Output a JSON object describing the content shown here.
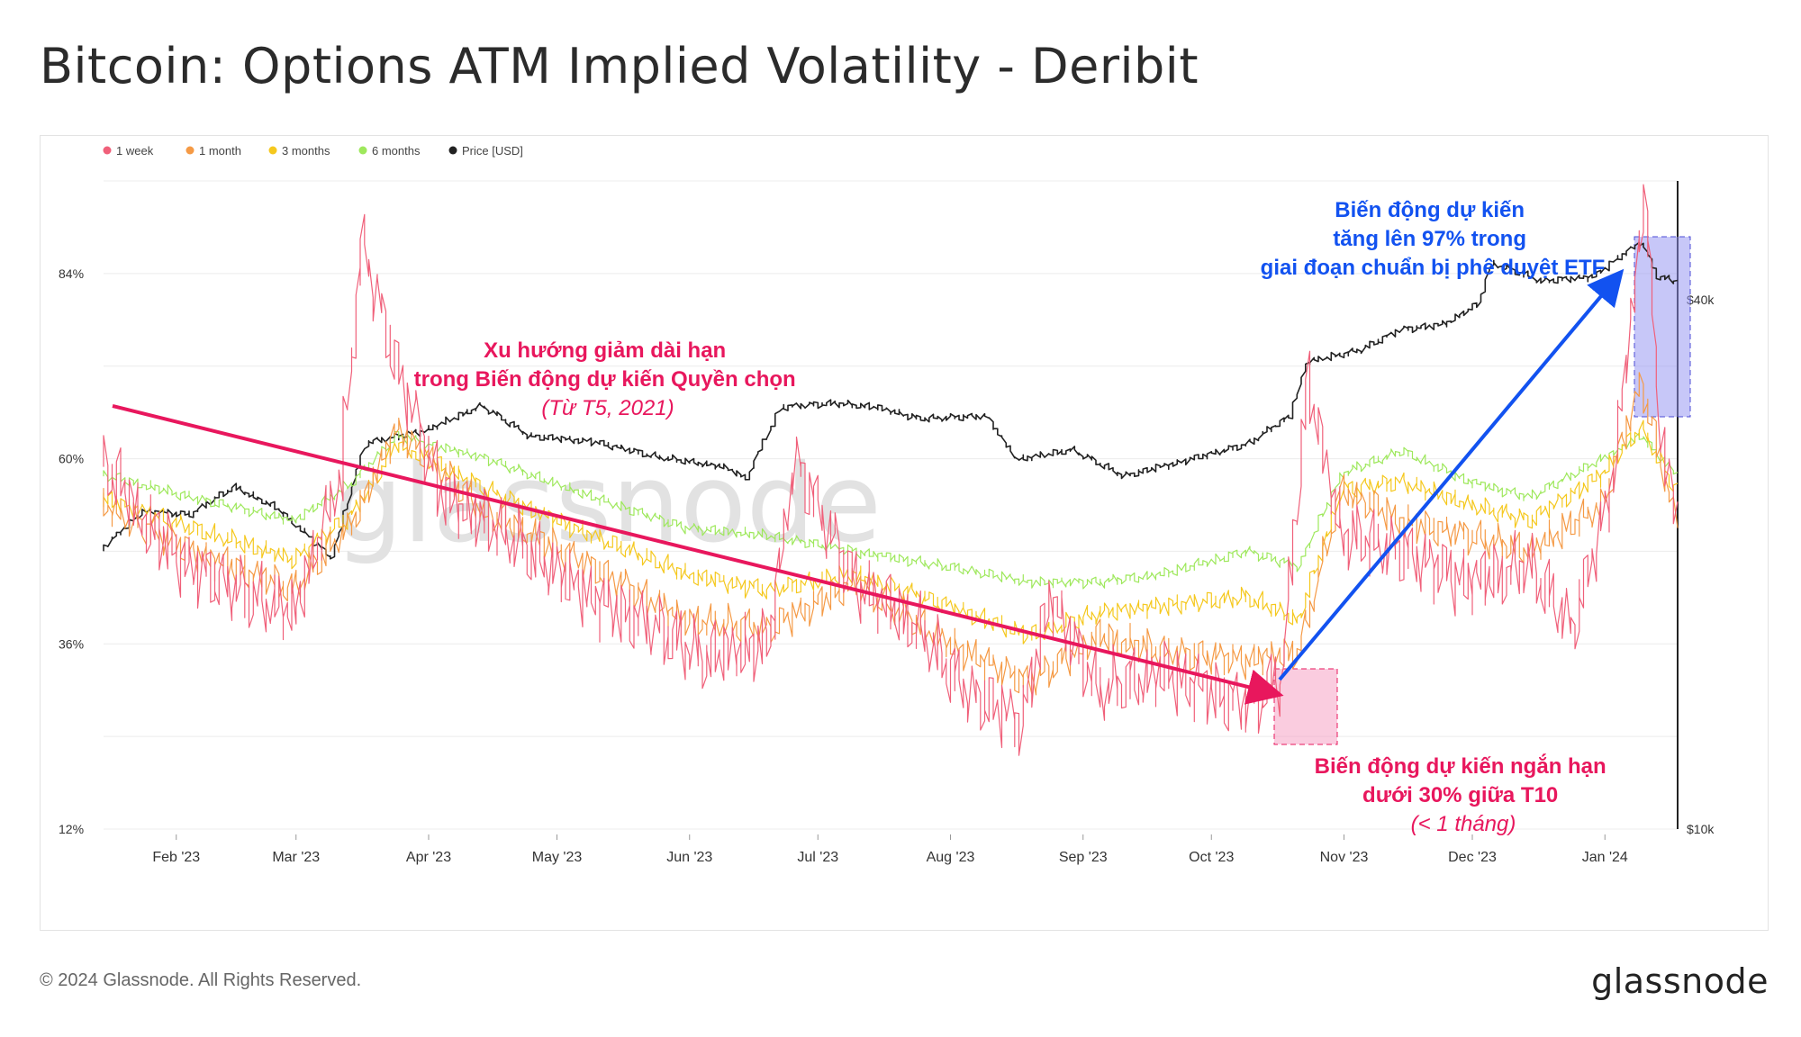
{
  "title": "Bitcoin: Options ATM Implied Volatility - Deribit",
  "footer": {
    "copyright": "© 2024 Glassnode. All Rights Reserved.",
    "logo": "glassnode"
  },
  "watermark": "glassnode",
  "chart_data": {
    "type": "line",
    "legend": [
      {
        "name": "1 week",
        "color": "#f0607a"
      },
      {
        "name": "1 month",
        "color": "#f59a45"
      },
      {
        "name": "3 months",
        "color": "#f5c81e"
      },
      {
        "name": "6 months",
        "color": "#9ee85c"
      },
      {
        "name": "Price [USD]",
        "color": "#222222"
      }
    ],
    "legend_position": "top-left",
    "x_ticks": [
      "Feb '23",
      "Mar '23",
      "Apr '23",
      "May '23",
      "Jun '23",
      "Jul '23",
      "Aug '23",
      "Sep '23",
      "Oct '23",
      "Nov '23",
      "Dec '23",
      "Jan '24"
    ],
    "x_range": [
      "2023-01-15",
      "2024-01-18"
    ],
    "y_left_ticks": [
      "84%",
      "60%",
      "36%",
      "12%"
    ],
    "y_left_range": [
      12,
      96
    ],
    "y_right_ticks": [
      "$40k",
      "$10k"
    ],
    "y_right_scale": "log",
    "grid": true,
    "series": [
      {
        "name": "Price [USD]",
        "axis": "right",
        "points": [
          [
            "2023-01-15",
            20800
          ],
          [
            "2023-01-25",
            23000
          ],
          [
            "2023-02-05",
            22800
          ],
          [
            "2023-02-15",
            24500
          ],
          [
            "2023-02-25",
            23200
          ],
          [
            "2023-03-10",
            20300
          ],
          [
            "2023-03-18",
            27500
          ],
          [
            "2023-04-01",
            28400
          ],
          [
            "2023-04-14",
            30300
          ],
          [
            "2023-04-25",
            28000
          ],
          [
            "2023-05-10",
            27600
          ],
          [
            "2023-05-25",
            26500
          ],
          [
            "2023-06-10",
            25800
          ],
          [
            "2023-06-15",
            25000
          ],
          [
            "2023-06-23",
            30200
          ],
          [
            "2023-07-05",
            30500
          ],
          [
            "2023-07-15",
            30200
          ],
          [
            "2023-07-25",
            29300
          ],
          [
            "2023-08-10",
            29500
          ],
          [
            "2023-08-17",
            26300
          ],
          [
            "2023-08-30",
            27000
          ],
          [
            "2023-09-11",
            25200
          ],
          [
            "2023-09-25",
            26200
          ],
          [
            "2023-10-10",
            27400
          ],
          [
            "2023-10-20",
            29500
          ],
          [
            "2023-10-24",
            34000
          ],
          [
            "2023-11-05",
            35000
          ],
          [
            "2023-11-15",
            37000
          ],
          [
            "2023-11-25",
            37500
          ],
          [
            "2023-12-03",
            39500
          ],
          [
            "2023-12-06",
            44000
          ],
          [
            "2023-12-18",
            42000
          ],
          [
            "2023-12-30",
            42500
          ],
          [
            "2024-01-03",
            44000
          ],
          [
            "2024-01-10",
            46500
          ],
          [
            "2024-01-14",
            42500
          ],
          [
            "2024-01-18",
            42000
          ]
        ]
      },
      {
        "name": "6 months",
        "axis": "left",
        "points": [
          [
            "2023-01-15",
            58
          ],
          [
            "2023-02-05",
            55
          ],
          [
            "2023-03-01",
            52
          ],
          [
            "2023-03-15",
            57
          ],
          [
            "2023-03-25",
            63
          ],
          [
            "2023-04-15",
            60
          ],
          [
            "2023-05-10",
            55
          ],
          [
            "2023-06-01",
            51
          ],
          [
            "2023-06-20",
            50
          ],
          [
            "2023-07-10",
            48
          ],
          [
            "2023-08-01",
            46
          ],
          [
            "2023-08-20",
            44
          ],
          [
            "2023-09-05",
            44
          ],
          [
            "2023-09-20",
            45
          ],
          [
            "2023-10-10",
            48
          ],
          [
            "2023-10-22",
            46
          ],
          [
            "2023-11-01",
            58
          ],
          [
            "2023-11-15",
            61
          ],
          [
            "2023-12-01",
            57
          ],
          [
            "2023-12-15",
            55
          ],
          [
            "2024-01-01",
            60
          ],
          [
            "2024-01-10",
            63
          ],
          [
            "2024-01-18",
            58
          ]
        ]
      },
      {
        "name": "3 months",
        "axis": "left",
        "points": [
          [
            "2023-01-15",
            55
          ],
          [
            "2023-02-05",
            51
          ],
          [
            "2023-03-01",
            47
          ],
          [
            "2023-03-15",
            53
          ],
          [
            "2023-03-25",
            62
          ],
          [
            "2023-04-15",
            56
          ],
          [
            "2023-05-10",
            50
          ],
          [
            "2023-06-01",
            45
          ],
          [
            "2023-06-20",
            43
          ],
          [
            "2023-07-10",
            45
          ],
          [
            "2023-08-01",
            41
          ],
          [
            "2023-08-20",
            37
          ],
          [
            "2023-09-05",
            40
          ],
          [
            "2023-09-20",
            41
          ],
          [
            "2023-10-10",
            42
          ],
          [
            "2023-10-22",
            39
          ],
          [
            "2023-11-01",
            56
          ],
          [
            "2023-11-15",
            57
          ],
          [
            "2023-12-01",
            54
          ],
          [
            "2023-12-15",
            52
          ],
          [
            "2024-01-01",
            58
          ],
          [
            "2024-01-10",
            64
          ],
          [
            "2024-01-18",
            56
          ]
        ]
      },
      {
        "name": "1 month",
        "axis": "left",
        "points": [
          [
            "2023-01-15",
            54
          ],
          [
            "2023-02-05",
            48
          ],
          [
            "2023-03-01",
            43
          ],
          [
            "2023-03-15",
            52
          ],
          [
            "2023-03-25",
            64
          ],
          [
            "2023-04-15",
            53
          ],
          [
            "2023-05-10",
            46
          ],
          [
            "2023-06-01",
            39
          ],
          [
            "2023-06-20",
            38
          ],
          [
            "2023-07-10",
            44
          ],
          [
            "2023-08-01",
            36
          ],
          [
            "2023-08-20",
            31
          ],
          [
            "2023-09-05",
            37
          ],
          [
            "2023-09-20",
            35
          ],
          [
            "2023-10-10",
            34
          ],
          [
            "2023-10-22",
            35
          ],
          [
            "2023-11-01",
            56
          ],
          [
            "2023-11-15",
            52
          ],
          [
            "2023-12-01",
            50
          ],
          [
            "2023-12-15",
            48
          ],
          [
            "2024-01-01",
            54
          ],
          [
            "2024-01-10",
            70
          ],
          [
            "2024-01-18",
            52
          ]
        ]
      },
      {
        "name": "1 week",
        "axis": "left",
        "points": [
          [
            "2023-01-15",
            60
          ],
          [
            "2023-01-25",
            52
          ],
          [
            "2023-02-05",
            46
          ],
          [
            "2023-02-20",
            42
          ],
          [
            "2023-03-01",
            40
          ],
          [
            "2023-03-12",
            58
          ],
          [
            "2023-03-17",
            88
          ],
          [
            "2023-03-25",
            72
          ],
          [
            "2023-04-05",
            55
          ],
          [
            "2023-04-20",
            50
          ],
          [
            "2023-05-10",
            42
          ],
          [
            "2023-05-25",
            38
          ],
          [
            "2023-06-05",
            34
          ],
          [
            "2023-06-20",
            36
          ],
          [
            "2023-06-26",
            60
          ],
          [
            "2023-07-10",
            44
          ],
          [
            "2023-07-25",
            38
          ],
          [
            "2023-08-05",
            30
          ],
          [
            "2023-08-18",
            26
          ],
          [
            "2023-08-25",
            42
          ],
          [
            "2023-09-05",
            30
          ],
          [
            "2023-09-20",
            32
          ],
          [
            "2023-10-01",
            30
          ],
          [
            "2023-10-10",
            28
          ],
          [
            "2023-10-18",
            32
          ],
          [
            "2023-10-24",
            70
          ],
          [
            "2023-11-01",
            50
          ],
          [
            "2023-11-15",
            48
          ],
          [
            "2023-12-01",
            44
          ],
          [
            "2023-12-15",
            46
          ],
          [
            "2023-12-25",
            38
          ],
          [
            "2024-01-03",
            56
          ],
          [
            "2024-01-08",
            80
          ],
          [
            "2024-01-11",
            95
          ],
          [
            "2024-01-14",
            66
          ],
          [
            "2024-01-18",
            52
          ]
        ]
      }
    ],
    "annotations": [
      {
        "id": "trend",
        "lines": [
          "Xu hướng giảm dài hạn",
          "trong Biến động dự kiến Quyền chọn",
          "(Từ T5, 2021)"
        ],
        "color": "#e8175d"
      },
      {
        "id": "low",
        "lines": [
          "Biến động dự kiến ngắn hạn",
          "dưới 30%  giữa T10",
          "(< 1 tháng)"
        ],
        "color": "#e8175d"
      },
      {
        "id": "etf",
        "lines": [
          "Biến động dự kiến",
          "tăng lên 97% trong",
          "giai đoạn chuẩn bị phê duyệt ETF"
        ],
        "color": "#1252f0"
      }
    ]
  }
}
